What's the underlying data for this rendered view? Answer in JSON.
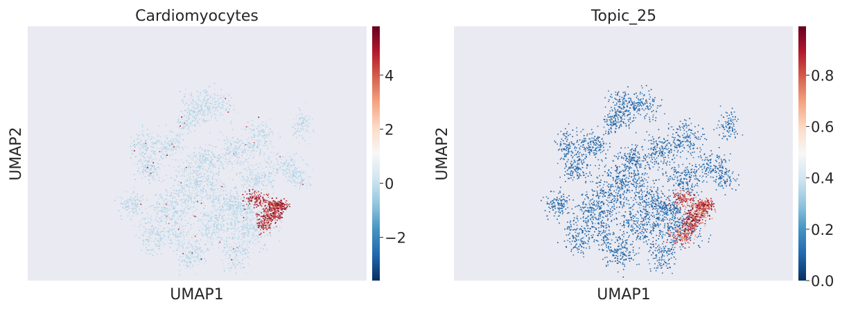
{
  "chart_data": [
    {
      "type": "scatter",
      "title": "Cardiomyocytes",
      "xlabel": "UMAP1",
      "ylabel": "UMAP2",
      "grid": false,
      "colormap": "RdBu_r",
      "colorbar": {
        "range": [
          -3.6,
          5.8
        ],
        "ticks": [
          -2,
          0,
          2,
          4
        ],
        "tick_labels": [
          "−2",
          "0",
          "2",
          "4"
        ]
      },
      "description_hint": "UMAP embedding; most cells near 0 (light blue), high values (dark red) concentrated in a cluster on the right edge"
    },
    {
      "type": "scatter",
      "title": "Topic_25",
      "xlabel": "UMAP1",
      "ylabel": "UMAP2",
      "grid": false,
      "colormap": "RdBu_r",
      "colorbar": {
        "range": [
          0.0,
          0.99
        ],
        "ticks": [
          0.0,
          0.2,
          0.4,
          0.6,
          0.8
        ],
        "tick_labels": [
          "0.0",
          "0.2",
          "0.4",
          "0.6",
          "0.8"
        ]
      },
      "description_hint": "UMAP embedding; most cells near 0 (dark blue), high values (dark red) in the right-side cluster"
    }
  ],
  "colors": {
    "background": "#eaeaf2",
    "colormap_stops": [
      "#053061",
      "#2166ac",
      "#4393c3",
      "#92c5de",
      "#d1e5f0",
      "#f7f7f7",
      "#fddbc7",
      "#f4a582",
      "#d6604d",
      "#b2182b",
      "#67001f"
    ]
  }
}
